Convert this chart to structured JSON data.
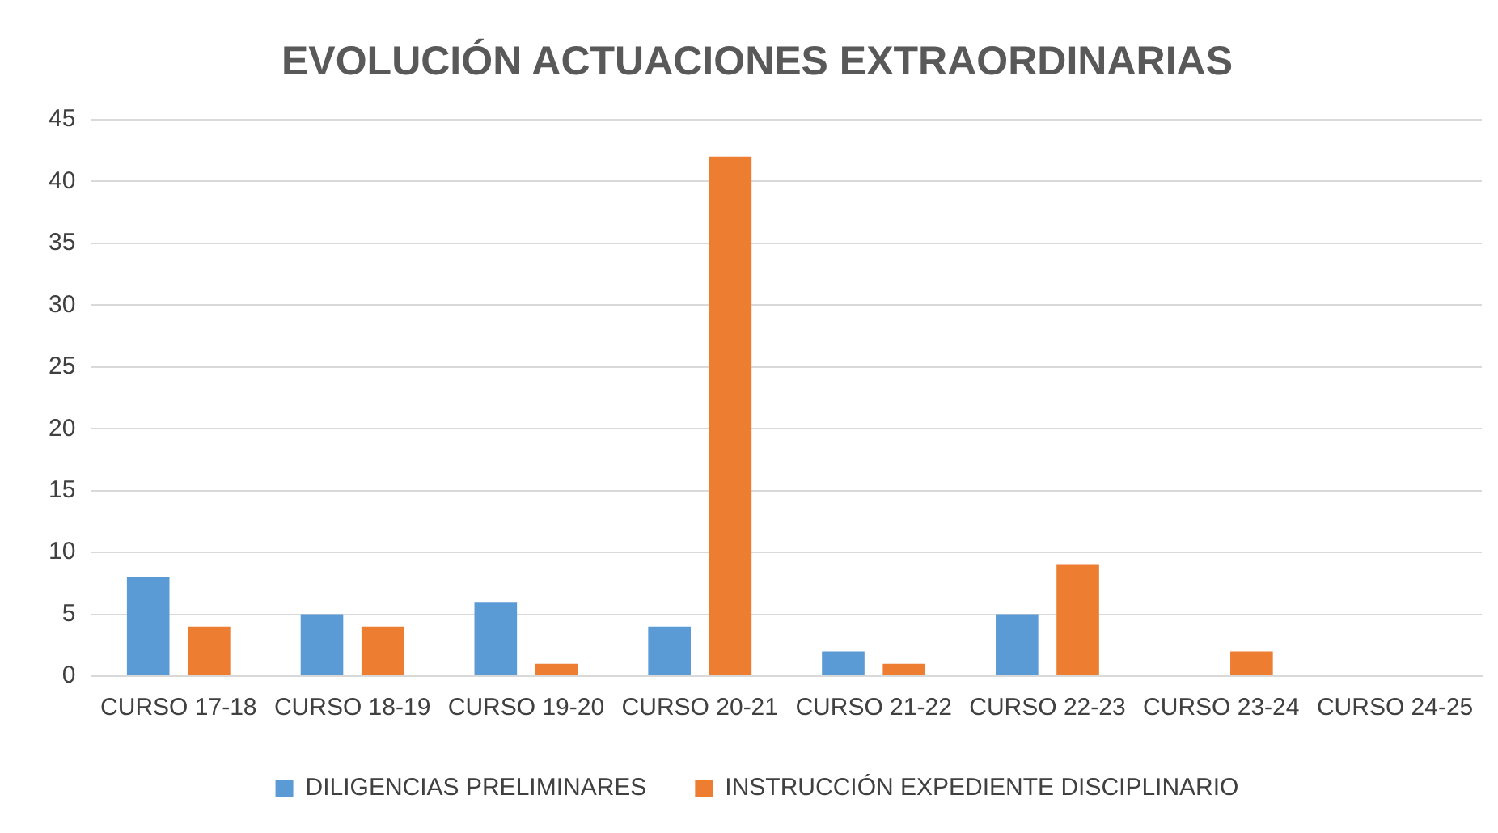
{
  "chart_data": {
    "type": "bar",
    "title": "EVOLUCIÓN ACTUACIONES EXTRAORDINARIAS",
    "categories": [
      "CURSO 17-18",
      "CURSO 18-19",
      "CURSO 19-20",
      "CURSO 20-21",
      "CURSO 21-22",
      "CURSO 22-23",
      "CURSO 23-24",
      "CURSO 24-25"
    ],
    "series": [
      {
        "name": "DILIGENCIAS PRELIMINARES",
        "color": "#5b9bd5",
        "values": [
          8,
          5,
          6,
          4,
          2,
          5,
          0,
          0
        ]
      },
      {
        "name": "INSTRUCCIÓN EXPEDIENTE DISCIPLINARIO",
        "color": "#ed7d31",
        "values": [
          4,
          4,
          1,
          42,
          1,
          9,
          2,
          0
        ]
      }
    ],
    "ylim": [
      0,
      45
    ],
    "yticks": [
      0,
      5,
      10,
      15,
      20,
      25,
      30,
      35,
      40,
      45
    ],
    "grid": "y",
    "legend": "bottom"
  }
}
